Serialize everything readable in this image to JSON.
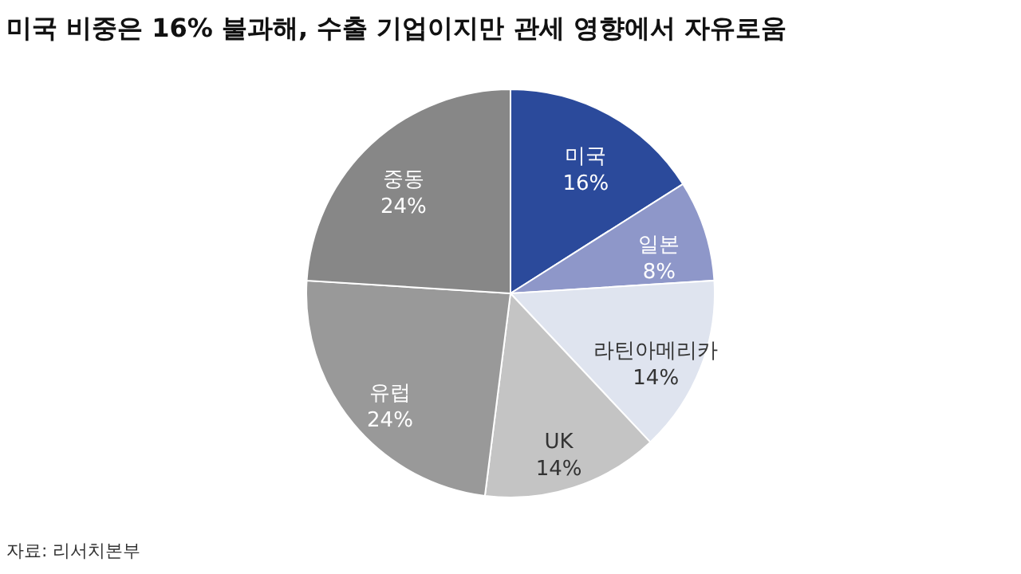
{
  "chart_data": {
    "type": "pie",
    "title": "미국 비중은 16% 불과해, 수출 기업이지만 관세 영향에서 자유로움",
    "categories": [
      "미국",
      "일본",
      "라틴아메리카",
      "UK",
      "유럽",
      "중동"
    ],
    "values": [
      16,
      8,
      14,
      14,
      24,
      24
    ],
    "value_labels": [
      "16%",
      "8%",
      "14%",
      "14%",
      "24%",
      "24%"
    ],
    "colors": [
      "#2b4a9b",
      "#8e97c9",
      "#dfe4ef",
      "#c4c4c4",
      "#999999",
      "#878787"
    ],
    "annotations": [
      "자료: 리서치본부"
    ]
  }
}
